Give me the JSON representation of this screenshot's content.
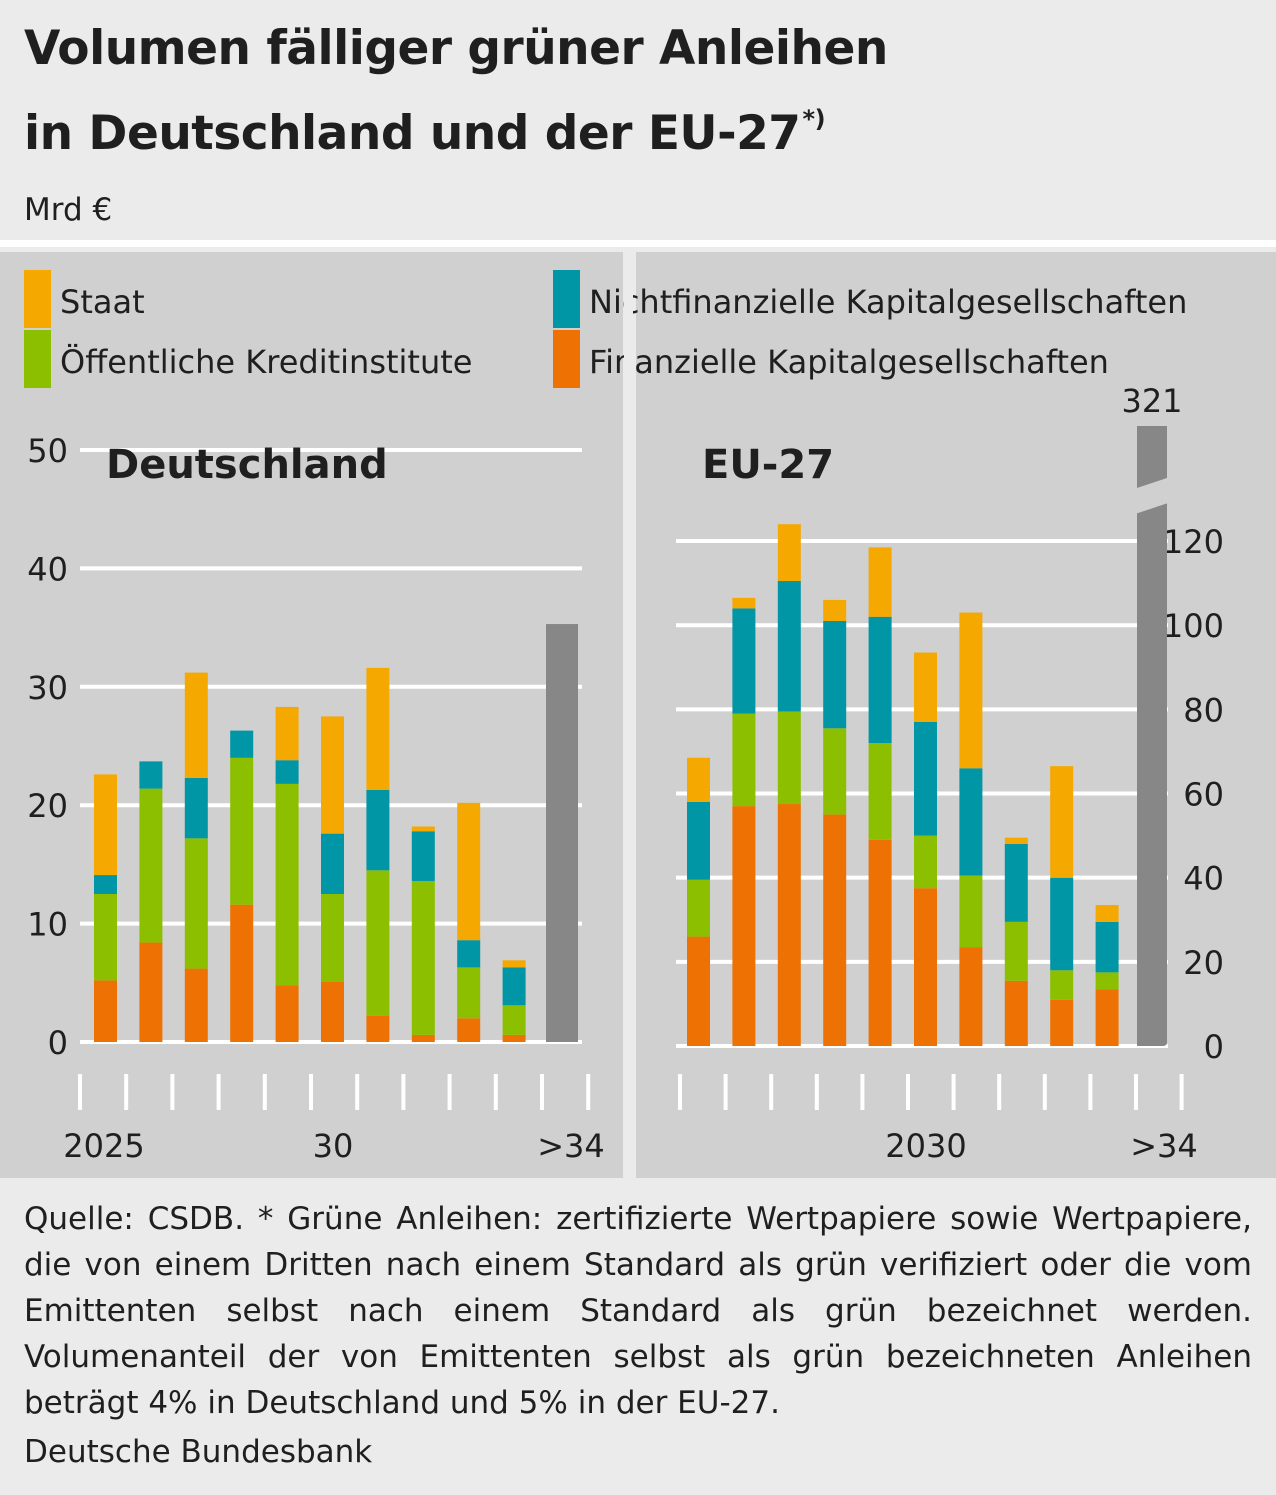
{
  "header": {
    "title_line1": "Volumen fälliger grüner Anleihen",
    "title_line2": "in Deutschland und der EU-27",
    "title_note": "*)",
    "unit": "Mrd €"
  },
  "legend": [
    {
      "label": "Staat",
      "color": "#f5a800"
    },
    {
      "label": "Öffentliche Kreditinstitute",
      "color": "#8cbf00"
    },
    {
      "label": "Nichtfinanzielle Kapitalgesellschaften",
      "color": "#0096a6"
    },
    {
      "label": "Finanzielle Kapitalgesellschaften",
      "color": "#ee7203"
    }
  ],
  "chart_data": [
    {
      "type": "bar",
      "stacked": true,
      "title": "Deutschland",
      "categories": [
        "2025",
        "2026",
        "2027",
        "2028",
        "2029",
        "30",
        "2031",
        "2032",
        "2033",
        "2034",
        ">34"
      ],
      "x_tick_labels": [
        "2025",
        "30",
        ">34"
      ],
      "ylim": [
        0,
        50
      ],
      "yticks": [
        0,
        10,
        20,
        30,
        40,
        50
      ],
      "grid": true,
      "series": [
        {
          "name": "Finanzielle Kapitalgesellschaften",
          "values": [
            5.2,
            8.4,
            6.2,
            11.6,
            4.8,
            5.1,
            2.2,
            0.6,
            2.0,
            0.6,
            null
          ]
        },
        {
          "name": "Öffentliche Kreditinstitute",
          "values": [
            7.3,
            13.0,
            11.0,
            12.4,
            17.0,
            7.4,
            12.3,
            13.0,
            4.3,
            2.5,
            null
          ]
        },
        {
          "name": "Nichtfinanzielle Kapitalgesellschaften",
          "values": [
            1.6,
            2.3,
            5.1,
            2.3,
            2.0,
            5.1,
            6.8,
            4.2,
            2.3,
            3.2,
            null
          ]
        },
        {
          "name": "Staat",
          "values": [
            8.5,
            0.0,
            8.9,
            0.0,
            4.5,
            9.9,
            10.3,
            0.4,
            11.6,
            0.6,
            null
          ]
        }
      ],
      "total_beyond": {
        "category": ">34",
        "value": 35.3,
        "color": "#878787"
      }
    },
    {
      "type": "bar",
      "stacked": true,
      "title": "EU-27",
      "categories": [
        "2025",
        "2026",
        "2027",
        "2028",
        "2029",
        "2030",
        "2031",
        "2032",
        "2033",
        "2034",
        ">34"
      ],
      "x_tick_labels": [
        "2030",
        ">34"
      ],
      "ylim": [
        0,
        120
      ],
      "yticks": [
        0,
        20,
        40,
        60,
        80,
        100,
        120
      ],
      "grid": true,
      "series": [
        {
          "name": "Finanzielle Kapitalgesellschaften",
          "values": [
            26,
            57,
            57.5,
            55,
            49,
            37.5,
            23.5,
            15.5,
            11,
            13.5,
            null
          ]
        },
        {
          "name": "Öffentliche Kreditinstitute",
          "values": [
            13.5,
            22,
            22,
            20.5,
            23,
            12.5,
            17,
            14,
            7,
            4,
            null
          ]
        },
        {
          "name": "Nichtfinanzielle Kapitalgesellschaften",
          "values": [
            18.5,
            25,
            31,
            25.5,
            30,
            27,
            25.5,
            18.5,
            22,
            12,
            null
          ]
        },
        {
          "name": "Staat",
          "values": [
            10.5,
            2.5,
            13.5,
            5,
            16.5,
            16.5,
            37,
            1.5,
            26.5,
            4,
            null
          ]
        }
      ],
      "total_beyond": {
        "category": ">34",
        "value": 321,
        "label": "321",
        "color": "#878787"
      }
    }
  ],
  "footer": {
    "source": "Quelle: CSDB. * Grüne Anleihen: zertifizierte Wertpapiere sowie Wertpapiere, die von einem Dritten nach einem Standard als grün verifiziert oder die vom Emittenten selbst nach einem Standard als grün bezeichnet werden. Volumenanteil der von Emittenten selbst als grün bezeichneten Anleihen beträgt 4% in Deutschland und 5% in der EU-27.",
    "org": "Deutsche Bundesbank"
  }
}
